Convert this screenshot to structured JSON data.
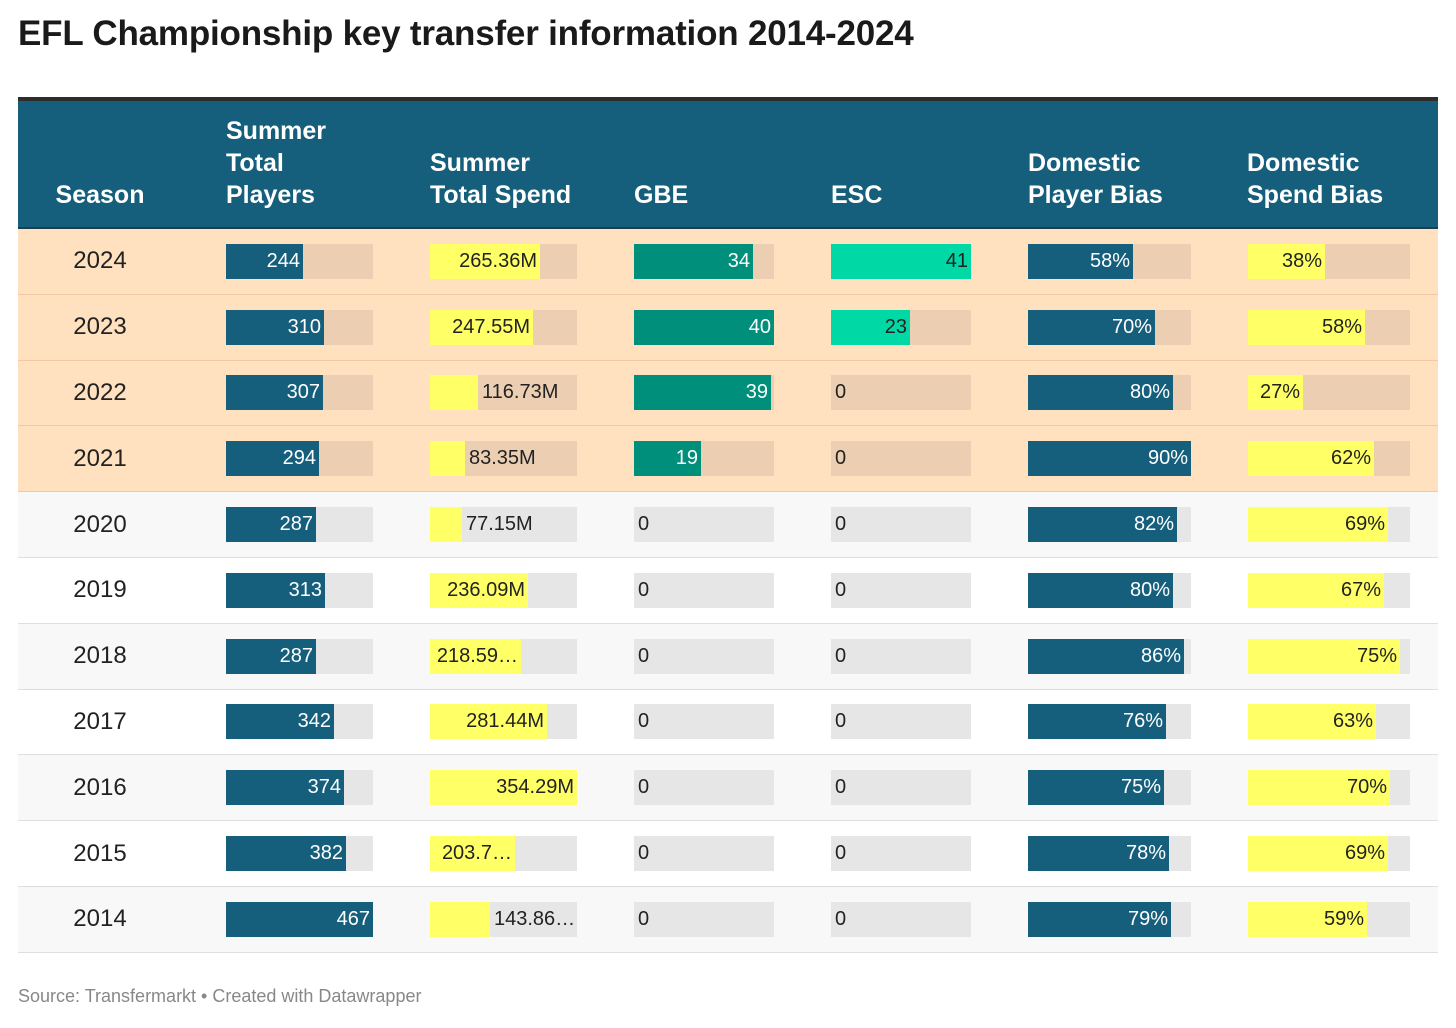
{
  "title": "EFL Championship key transfer information 2014-2024",
  "source": "Source: Transfermarkt • Created with Datawrapper",
  "colors": {
    "header_bg": "#165f7c",
    "dark_bar": "#165f7c",
    "yellow_bar": "#ffff66",
    "gbe_bar": "#008f7a",
    "esc_bar": "#00d9a6",
    "highlight_row": "#ffe1c0"
  },
  "headers": {
    "season": "Season",
    "players": [
      "Summer",
      "Total",
      "Players"
    ],
    "spend": [
      "Summer",
      "Total Spend"
    ],
    "gbe": [
      "GBE"
    ],
    "esc": [
      "ESC"
    ],
    "dpb": [
      "Domestic",
      "Player Bias"
    ],
    "dsb": [
      "Domestic",
      "Spend Bias"
    ]
  },
  "chart_data": {
    "type": "table",
    "title": "EFL Championship key transfer information 2014-2024",
    "columns": [
      "Season",
      "Summer Total Players",
      "Summer Total Spend",
      "GBE",
      "ESC",
      "Domestic Player Bias",
      "Domestic Spend Bias"
    ],
    "highlighted_seasons": [
      "2024",
      "2023",
      "2022",
      "2021"
    ],
    "rows": [
      {
        "season": "2024",
        "players": 244,
        "players_label": "244",
        "spend": 265.36,
        "spend_label": "265.36M",
        "gbe": 34,
        "gbe_label": "34",
        "esc": 41,
        "esc_label": "41",
        "dpb": 58,
        "dpb_label": "58%",
        "dsb": 38,
        "dsb_label": "38%"
      },
      {
        "season": "2023",
        "players": 310,
        "players_label": "310",
        "spend": 247.55,
        "spend_label": "247.55M",
        "gbe": 40,
        "gbe_label": "40",
        "esc": 23,
        "esc_label": "23",
        "dpb": 70,
        "dpb_label": "70%",
        "dsb": 58,
        "dsb_label": "58%"
      },
      {
        "season": "2022",
        "players": 307,
        "players_label": "307",
        "spend": 116.73,
        "spend_label": "116.73M",
        "gbe": 39,
        "gbe_label": "39",
        "esc": 0,
        "esc_label": "0",
        "dpb": 80,
        "dpb_label": "80%",
        "dsb": 27,
        "dsb_label": "27%"
      },
      {
        "season": "2021",
        "players": 294,
        "players_label": "294",
        "spend": 83.35,
        "spend_label": "83.35M",
        "gbe": 19,
        "gbe_label": "19",
        "esc": 0,
        "esc_label": "0",
        "dpb": 90,
        "dpb_label": "90%",
        "dsb": 62,
        "dsb_label": "62%"
      },
      {
        "season": "2020",
        "players": 287,
        "players_label": "287",
        "spend": 77.15,
        "spend_label": "77.15M",
        "gbe": 0,
        "gbe_label": "0",
        "esc": 0,
        "esc_label": "0",
        "dpb": 82,
        "dpb_label": "82%",
        "dsb": 69,
        "dsb_label": "69%"
      },
      {
        "season": "2019",
        "players": 313,
        "players_label": "313",
        "spend": 236.09,
        "spend_label": "236.09M",
        "gbe": 0,
        "gbe_label": "0",
        "esc": 0,
        "esc_label": "0",
        "dpb": 80,
        "dpb_label": "80%",
        "dsb": 67,
        "dsb_label": "67%"
      },
      {
        "season": "2018",
        "players": 287,
        "players_label": "287",
        "spend": 218.59,
        "spend_label": "218.59…",
        "gbe": 0,
        "gbe_label": "0",
        "esc": 0,
        "esc_label": "0",
        "dpb": 86,
        "dpb_label": "86%",
        "dsb": 75,
        "dsb_label": "75%"
      },
      {
        "season": "2017",
        "players": 342,
        "players_label": "342",
        "spend": 281.44,
        "spend_label": "281.44M",
        "gbe": 0,
        "gbe_label": "0",
        "esc": 0,
        "esc_label": "0",
        "dpb": 76,
        "dpb_label": "76%",
        "dsb": 63,
        "dsb_label": "63%"
      },
      {
        "season": "2016",
        "players": 374,
        "players_label": "374",
        "spend": 354.29,
        "spend_label": "354.29M",
        "gbe": 0,
        "gbe_label": "0",
        "esc": 0,
        "esc_label": "0",
        "dpb": 75,
        "dpb_label": "75%",
        "dsb": 70,
        "dsb_label": "70%"
      },
      {
        "season": "2015",
        "players": 382,
        "players_label": "382",
        "spend": 203.7,
        "spend_label": "203.7…",
        "gbe": 0,
        "gbe_label": "0",
        "esc": 0,
        "esc_label": "0",
        "dpb": 78,
        "dpb_label": "78%",
        "dsb": 69,
        "dsb_label": "69%"
      },
      {
        "season": "2014",
        "players": 467,
        "players_label": "467",
        "spend": 143.86,
        "spend_label": "143.86…",
        "gbe": 0,
        "gbe_label": "0",
        "esc": 0,
        "esc_label": "0",
        "dpb": 79,
        "dpb_label": "79%",
        "dsb": 59,
        "dsb_label": "59%"
      }
    ]
  }
}
